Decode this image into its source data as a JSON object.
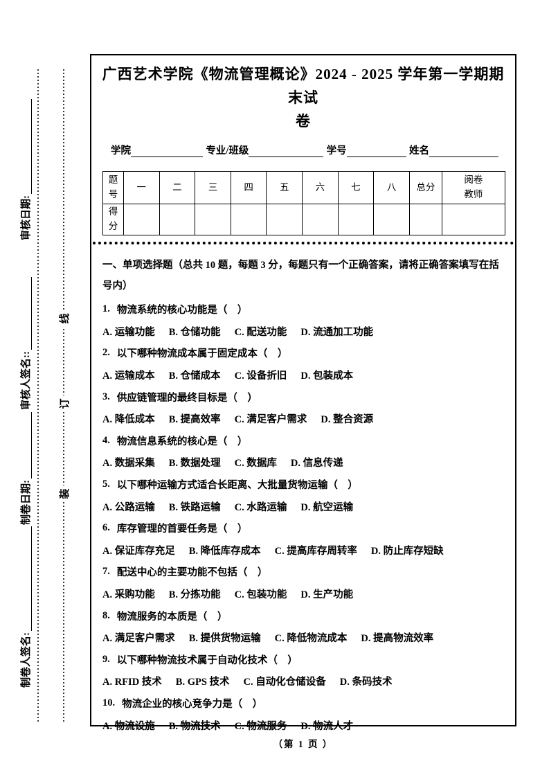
{
  "colors": {
    "ink": "#000000",
    "binding_dots": "#3f362e"
  },
  "sidebar": {
    "labels": [
      {
        "text": "审核日期:"
      },
      {
        "text": "审核人签名::"
      },
      {
        "text": "制卷日期:"
      },
      {
        "text": "制卷人签名:"
      }
    ],
    "binding_chars": [
      "线",
      "订",
      "装"
    ]
  },
  "header": {
    "title_line1": "广西艺术学院《物流管理概论》2024 - 2025 学年第一学期期末试",
    "title_line2": "卷",
    "fields": [
      {
        "label": "学院"
      },
      {
        "label": "专业/班级"
      },
      {
        "label": "学号"
      },
      {
        "label": "姓名"
      }
    ]
  },
  "score_table": {
    "header_row": [
      "题\n号",
      "一",
      "二",
      "三",
      "四",
      "五",
      "六",
      "七",
      "八",
      "总分",
      "阅卷\n教师"
    ],
    "score_row_label": "得\n分"
  },
  "section": {
    "heading": "一、单项选择题（总共 10 题，每题 3 分，每题只有一个正确答案，请将正确答案填写在括号内）"
  },
  "questions": [
    {
      "num": "1.",
      "text": "物流系统的核心功能是（　）",
      "options": [
        "A. 运输功能",
        "B. 仓储功能",
        "C. 配送功能",
        "D. 流通加工功能"
      ]
    },
    {
      "num": "2.",
      "text": "以下哪种物流成本属于固定成本（　）",
      "options": [
        "A. 运输成本",
        "B. 仓储成本",
        "C. 设备折旧",
        "D. 包装成本"
      ]
    },
    {
      "num": "3.",
      "text": "供应链管理的最终目标是（　）",
      "options": [
        "A. 降低成本",
        "B. 提高效率",
        "C. 满足客户需求",
        "D. 整合资源"
      ]
    },
    {
      "num": "4.",
      "text": "物流信息系统的核心是（　）",
      "options": [
        "A. 数据采集",
        "B. 数据处理",
        "C. 数据库",
        "D. 信息传递"
      ]
    },
    {
      "num": "5.",
      "text": "以下哪种运输方式适合长距离、大批量货物运输（　）",
      "options": [
        "A. 公路运输",
        "B. 铁路运输",
        "C. 水路运输",
        "D. 航空运输"
      ]
    },
    {
      "num": "6.",
      "text": "库存管理的首要任务是（　）",
      "options": [
        "A. 保证库存充足",
        "B. 降低库存成本",
        "C. 提高库存周转率",
        "D. 防止库存短缺"
      ]
    },
    {
      "num": "7.",
      "text": "配送中心的主要功能不包括（　）",
      "options": [
        "A. 采购功能",
        "B. 分拣功能",
        "C. 包装功能",
        "D. 生产功能"
      ]
    },
    {
      "num": "8.",
      "text": "物流服务的本质是（　）",
      "options": [
        "A. 满足客户需求",
        "B. 提供货物运输",
        "C. 降低物流成本",
        "D. 提高物流效率"
      ]
    },
    {
      "num": "9.",
      "text": "以下哪种物流技术属于自动化技术（　）",
      "options": [
        "A. RFID 技术",
        "B. GPS 技术",
        "C. 自动化仓储设备",
        "D. 条码技术"
      ]
    },
    {
      "num": "10.",
      "text": "物流企业的核心竞争力是（　）",
      "options": [
        "A. 物流设施",
        "B. 物流技术",
        "C. 物流服务",
        "D. 物流人才"
      ]
    }
  ],
  "footer": {
    "page_label": "（第 1 页 ）"
  }
}
